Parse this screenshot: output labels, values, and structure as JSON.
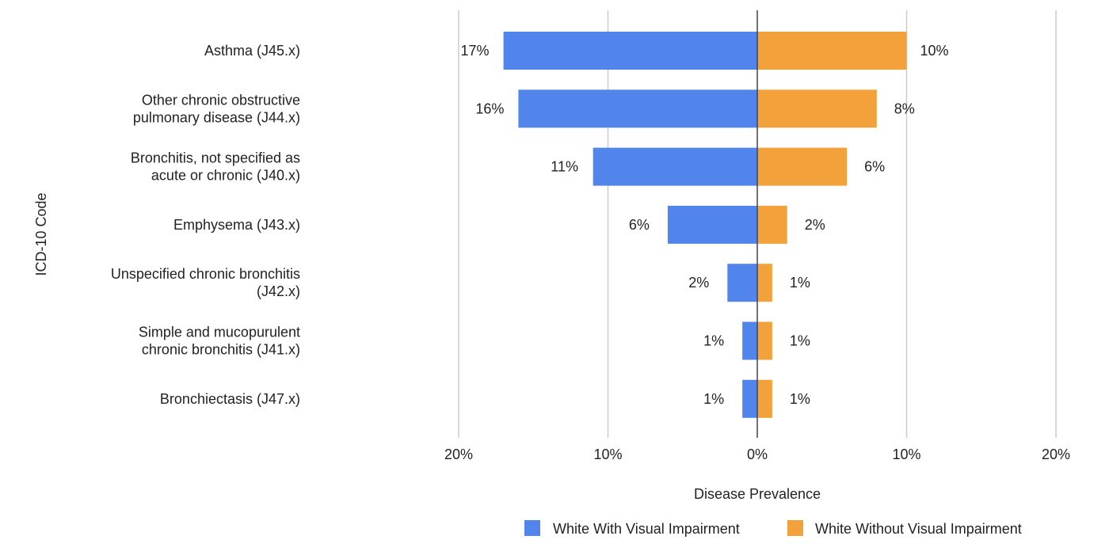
{
  "chart_data": {
    "type": "bar",
    "orientation": "horizontal-diverging",
    "categories": [
      [
        "Asthma (J45.x)"
      ],
      [
        "Other chronic obstructive",
        "pulmonary disease (J44.x)"
      ],
      [
        "Bronchitis, not specified as",
        "acute or chronic (J40.x)"
      ],
      [
        "Emphysema (J43.x)"
      ],
      [
        "Unspecified chronic bronchitis",
        "(J42.x)"
      ],
      [
        "Simple and mucopurulent",
        "chronic bronchitis (J41.x)"
      ],
      [
        "Bronchiectasis (J47.x)"
      ]
    ],
    "series": [
      {
        "name": "White With Visual Impairment",
        "side": "left",
        "color": "#5185ec",
        "values": [
          17,
          16,
          11,
          6,
          2,
          1,
          1
        ],
        "labels": [
          "17%",
          "16%",
          "11%",
          "6%",
          "2%",
          "1%",
          "1%"
        ]
      },
      {
        "name": "White Without Visual Impairment",
        "side": "right",
        "color": "#f3a13a",
        "values": [
          10,
          8,
          6,
          2,
          1,
          1,
          1
        ],
        "labels": [
          "10%",
          "8%",
          "6%",
          "2%",
          "1%",
          "1%",
          "1%"
        ]
      }
    ],
    "xlim": [
      -20,
      20
    ],
    "xticks": [
      {
        "value": -20,
        "label": "20%"
      },
      {
        "value": -10,
        "label": "10%"
      },
      {
        "value": 0,
        "label": "0%"
      },
      {
        "value": 10,
        "label": "10%"
      },
      {
        "value": 20,
        "label": "20%"
      }
    ],
    "xlabel": "Disease Prevalence",
    "ylabel": "ICD-10 Code",
    "grid": true,
    "legend_position": "bottom-right"
  }
}
